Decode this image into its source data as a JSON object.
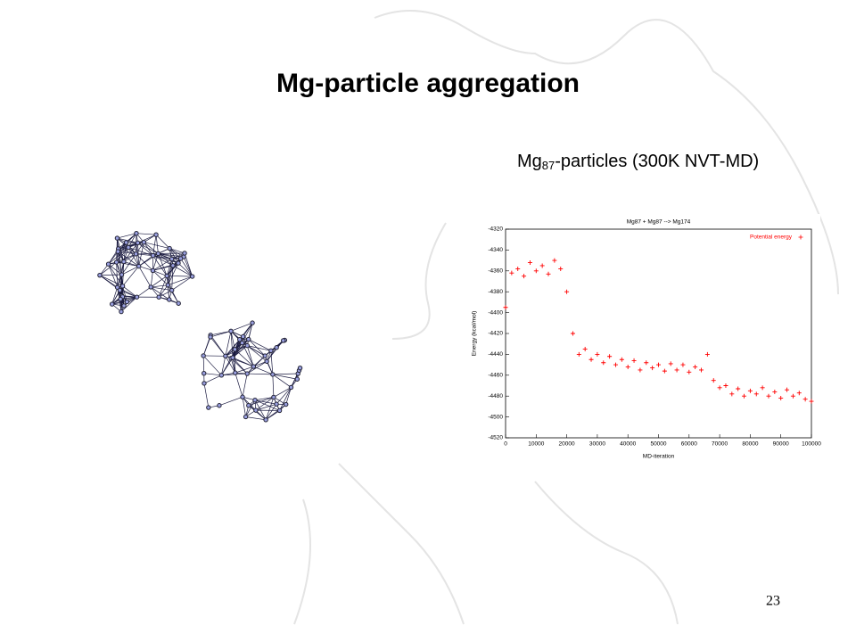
{
  "slide": {
    "title": "Mg-particle aggregation",
    "subtitle": {
      "main": "Mg",
      "subscript": "87",
      "rest": "-particles (300K NVT-MD)"
    },
    "page_number": "23"
  },
  "chart_data": {
    "type": "scatter",
    "title": "Mg87 + Mg87 --> Mg174",
    "x_label": "MD-iteration",
    "y_label": "Energy (kcal/mol)",
    "xlim": [
      0,
      100000
    ],
    "xticks": [
      0,
      10000,
      20000,
      30000,
      40000,
      50000,
      60000,
      70000,
      80000,
      90000,
      100000
    ],
    "ylim": [
      -4520,
      -4320
    ],
    "yticks": [
      -4520,
      -4500,
      -4480,
      -4460,
      -4440,
      -4420,
      -4400,
      -4380,
      -4360,
      -4340,
      -4320
    ],
    "legend": "top-right",
    "x": [
      0,
      2000,
      4000,
      6000,
      8000,
      10000,
      12000,
      14000,
      16000,
      18000,
      20000,
      22000,
      24000,
      26000,
      28000,
      30000,
      32000,
      34000,
      36000,
      38000,
      40000,
      42000,
      44000,
      46000,
      48000,
      50000,
      52000,
      54000,
      56000,
      58000,
      60000,
      62000,
      64000,
      66000,
      68000,
      70000,
      72000,
      74000,
      76000,
      78000,
      80000,
      82000,
      84000,
      86000,
      88000,
      90000,
      92000,
      94000,
      96000,
      98000,
      100000
    ],
    "series": [
      {
        "name": "Potential energy",
        "color": "#ff0000",
        "values": [
          -4395,
          -4362,
          -4358,
          -4365,
          -4352,
          -4360,
          -4355,
          -4363,
          -4350,
          -4358,
          -4380,
          -4420,
          -4440,
          -4435,
          -4445,
          -4440,
          -4448,
          -4442,
          -4450,
          -4445,
          -4452,
          -4446,
          -4455,
          -4448,
          -4453,
          -4450,
          -4456,
          -4449,
          -4455,
          -4450,
          -4457,
          -4452,
          -4455,
          -4440,
          -4465,
          -4472,
          -4470,
          -4478,
          -4473,
          -4480,
          -4475,
          -4478,
          -4472,
          -4480,
          -4476,
          -4482,
          -4474,
          -4480,
          -4477,
          -4483,
          -4485
        ]
      }
    ]
  }
}
